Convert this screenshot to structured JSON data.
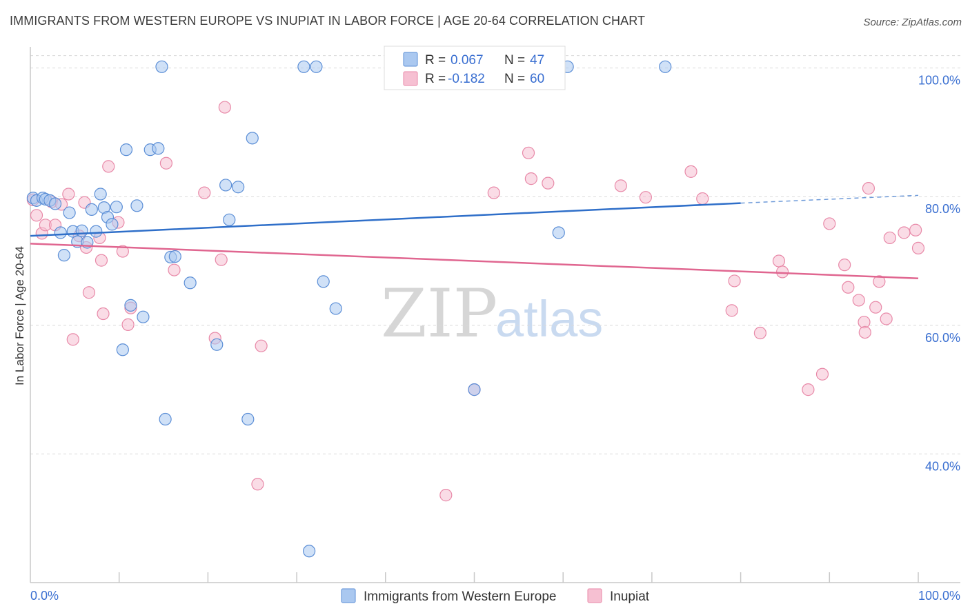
{
  "title": "IMMIGRANTS FROM WESTERN EUROPE VS INUPIAT IN LABOR FORCE | AGE 20-64 CORRELATION CHART",
  "source": "Source: ZipAtlas.com",
  "watermark": {
    "zip": "ZIP",
    "atlas": "atlas"
  },
  "colors": {
    "blue_fill": "#aac8f0",
    "blue_stroke": "#5b8ed6",
    "blue_line": "#2f6fc9",
    "pink_fill": "#f6c0d2",
    "pink_stroke": "#e889a8",
    "pink_line": "#e06690",
    "grid": "#d9d9d9",
    "tick_text": "#3a6fd1"
  },
  "legend": {
    "rows": [
      {
        "r_label": "R =",
        "r_value": "0.067",
        "n_label": "N =",
        "n_value": "47"
      },
      {
        "r_label": "R =",
        "r_value": "-0.182",
        "n_label": "N =",
        "n_value": "60"
      }
    ]
  },
  "chart_data": {
    "type": "scatter",
    "title": "IMMIGRANTS FROM WESTERN EUROPE VS INUPIAT IN LABOR FORCE | AGE 20-64 CORRELATION CHART",
    "xlabel": "",
    "ylabel": "In Labor Force | Age 20-64",
    "xlim": [
      0,
      100
    ],
    "ylim": [
      20,
      102
    ],
    "x_tick_labels": [
      "0.0%",
      "100.0%"
    ],
    "y_ticks": [
      40,
      60,
      80,
      100
    ],
    "y_tick_labels": [
      "40.0%",
      "60.0%",
      "80.0%",
      "100.0%"
    ],
    "grid": true,
    "legend_position": "top-center",
    "series": [
      {
        "name": "Immigrants from Western Europe",
        "color": "#aac8f0",
        "r": 0.067,
        "n": 47,
        "trend": {
          "x0": 0,
          "y0": 73.9,
          "x1": 80,
          "y1": 79.0,
          "dashed_to_x": 100,
          "dashed_to_y": 80.2
        },
        "points": [
          [
            0.3,
            79.8
          ],
          [
            0.7,
            79.4
          ],
          [
            1.4,
            79.8
          ],
          [
            1.7,
            79.6
          ],
          [
            2.2,
            79.4
          ],
          [
            2.8,
            78.9
          ],
          [
            3.4,
            74.4
          ],
          [
            3.8,
            70.9
          ],
          [
            4.4,
            77.5
          ],
          [
            4.8,
            74.6
          ],
          [
            5.3,
            73.0
          ],
          [
            5.8,
            74.7
          ],
          [
            6.4,
            72.9
          ],
          [
            6.9,
            78.0
          ],
          [
            7.4,
            74.6
          ],
          [
            7.9,
            80.4
          ],
          [
            8.3,
            78.3
          ],
          [
            8.7,
            76.8
          ],
          [
            9.2,
            75.7
          ],
          [
            9.7,
            78.4
          ],
          [
            10.4,
            56.2
          ],
          [
            10.8,
            87.3
          ],
          [
            11.3,
            63.1
          ],
          [
            12.0,
            78.6
          ],
          [
            12.7,
            61.3
          ],
          [
            13.5,
            87.3
          ],
          [
            14.4,
            87.5
          ],
          [
            14.8,
            100.2
          ],
          [
            15.2,
            45.4
          ],
          [
            15.8,
            70.6
          ],
          [
            16.3,
            70.7
          ],
          [
            18.0,
            66.6
          ],
          [
            21.0,
            57.0
          ],
          [
            22.0,
            81.8
          ],
          [
            22.4,
            76.4
          ],
          [
            23.4,
            81.5
          ],
          [
            24.5,
            45.4
          ],
          [
            25.0,
            89.1
          ],
          [
            30.8,
            100.2
          ],
          [
            31.4,
            24.9
          ],
          [
            32.2,
            100.2
          ],
          [
            33.0,
            66.8
          ],
          [
            34.4,
            62.6
          ],
          [
            50.0,
            50.0
          ],
          [
            59.5,
            74.4
          ],
          [
            60.5,
            100.2
          ],
          [
            71.5,
            100.2
          ]
        ]
      },
      {
        "name": "Inupiat",
        "color": "#f6c0d2",
        "r": -0.182,
        "n": 60,
        "trend": {
          "x0": 0,
          "y0": 72.7,
          "x1": 100,
          "y1": 67.3
        },
        "points": [
          [
            0.3,
            79.5
          ],
          [
            0.7,
            77.1
          ],
          [
            1.3,
            74.3
          ],
          [
            1.7,
            75.6
          ],
          [
            2.4,
            79.2
          ],
          [
            2.8,
            75.6
          ],
          [
            3.5,
            78.8
          ],
          [
            4.3,
            80.4
          ],
          [
            4.8,
            57.8
          ],
          [
            5.5,
            73.9
          ],
          [
            6.1,
            79.1
          ],
          [
            6.3,
            72.1
          ],
          [
            6.6,
            65.1
          ],
          [
            7.8,
            73.6
          ],
          [
            8.0,
            70.1
          ],
          [
            8.2,
            61.8
          ],
          [
            8.8,
            84.7
          ],
          [
            9.9,
            76.0
          ],
          [
            10.4,
            71.5
          ],
          [
            11.0,
            60.1
          ],
          [
            11.3,
            62.7
          ],
          [
            15.3,
            85.2
          ],
          [
            16.2,
            68.6
          ],
          [
            19.6,
            80.6
          ],
          [
            20.8,
            58.0
          ],
          [
            21.5,
            70.2
          ],
          [
            21.9,
            93.9
          ],
          [
            25.6,
            35.3
          ],
          [
            26.0,
            56.8
          ],
          [
            46.8,
            33.6
          ],
          [
            50.0,
            50.0
          ],
          [
            52.2,
            80.6
          ],
          [
            56.1,
            86.8
          ],
          [
            56.4,
            82.8
          ],
          [
            58.3,
            82.1
          ],
          [
            66.5,
            81.7
          ],
          [
            69.3,
            79.9
          ],
          [
            74.4,
            83.9
          ],
          [
            75.7,
            79.7
          ],
          [
            79.0,
            62.3
          ],
          [
            79.3,
            66.9
          ],
          [
            82.2,
            58.8
          ],
          [
            84.3,
            70.0
          ],
          [
            84.7,
            68.3
          ],
          [
            87.6,
            50.0
          ],
          [
            89.2,
            52.4
          ],
          [
            90.0,
            75.8
          ],
          [
            91.7,
            69.4
          ],
          [
            92.1,
            65.9
          ],
          [
            93.3,
            63.9
          ],
          [
            93.9,
            60.5
          ],
          [
            94.0,
            58.9
          ],
          [
            94.4,
            81.3
          ],
          [
            95.2,
            62.8
          ],
          [
            95.6,
            66.8
          ],
          [
            96.4,
            61.0
          ],
          [
            96.8,
            73.6
          ],
          [
            98.4,
            74.4
          ],
          [
            99.7,
            74.8
          ],
          [
            100.0,
            72.0
          ]
        ]
      }
    ]
  }
}
